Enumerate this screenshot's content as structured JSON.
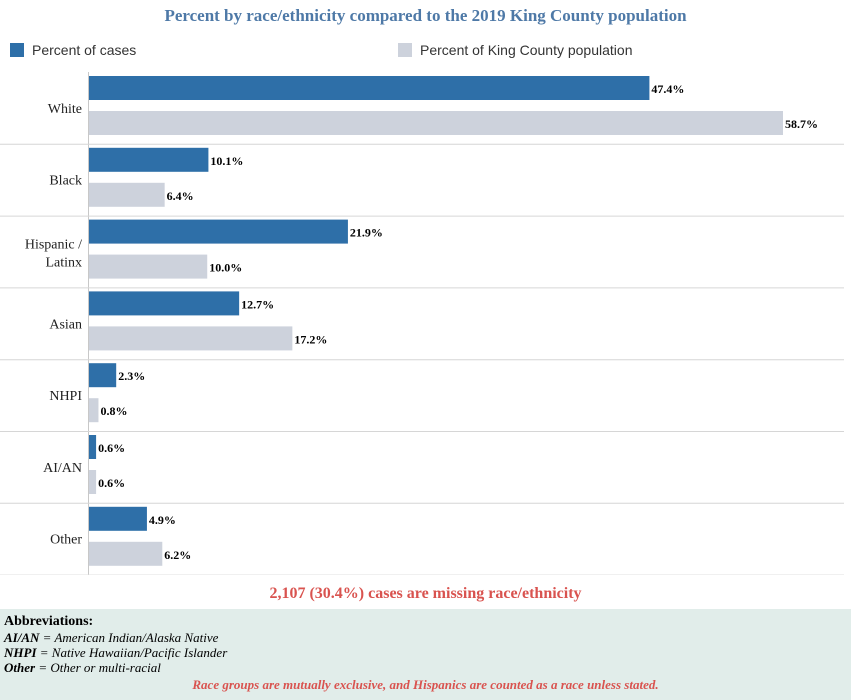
{
  "title": "Percent by race/ethnicity compared to the 2019 King County population",
  "colors": {
    "title": "#4e79a7",
    "cases": "#2e6fa8",
    "population": "#cdd2dc",
    "missing": "#d9534f",
    "abbrev_bg": "#e1edea",
    "gridline": "#d6d6d6"
  },
  "legend": {
    "cases_label": "Percent of cases",
    "population_label": "Percent of King County population"
  },
  "chart_data": {
    "type": "bar",
    "orientation": "horizontal",
    "categories": [
      "White",
      "Black",
      "Hispanic / Latinx",
      "Asian",
      "NHPI",
      "AI/AN",
      "Other"
    ],
    "series": [
      {
        "name": "Percent of cases",
        "values": [
          47.4,
          10.1,
          21.9,
          12.7,
          2.3,
          0.6,
          4.9
        ]
      },
      {
        "name": "Percent of King County population",
        "values": [
          58.7,
          6.4,
          10.0,
          17.2,
          0.8,
          0.6,
          6.2
        ]
      }
    ],
    "xlim": [
      0,
      60
    ],
    "grid": false,
    "legend_position": "top"
  },
  "missing_note": "2,107 (30.4%) cases are missing race/ethnicity",
  "abbreviations": {
    "heading": "Abbreviations:",
    "items": [
      {
        "abbr": "AI/AN",
        "text": " = American Indian/Alaska Native"
      },
      {
        "abbr": "NHPI",
        "text": " = Native Hawaiian/Pacific Islander"
      },
      {
        "abbr": "Other",
        "text": " = Other or multi-racial"
      }
    ],
    "footnote": "Race groups are mutually exclusive, and Hispanics are counted as a race unless stated."
  }
}
